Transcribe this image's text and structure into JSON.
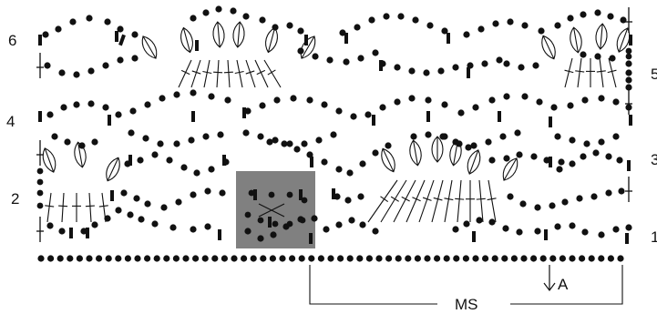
{
  "diagram": {
    "row_labels": {
      "left": [
        "6",
        "4",
        "2"
      ],
      "right": [
        "5",
        "3",
        "1"
      ]
    },
    "arrow_label": "A",
    "repeat_label": "MS",
    "highlight_color": "#808080",
    "ink_color": "#111111"
  }
}
